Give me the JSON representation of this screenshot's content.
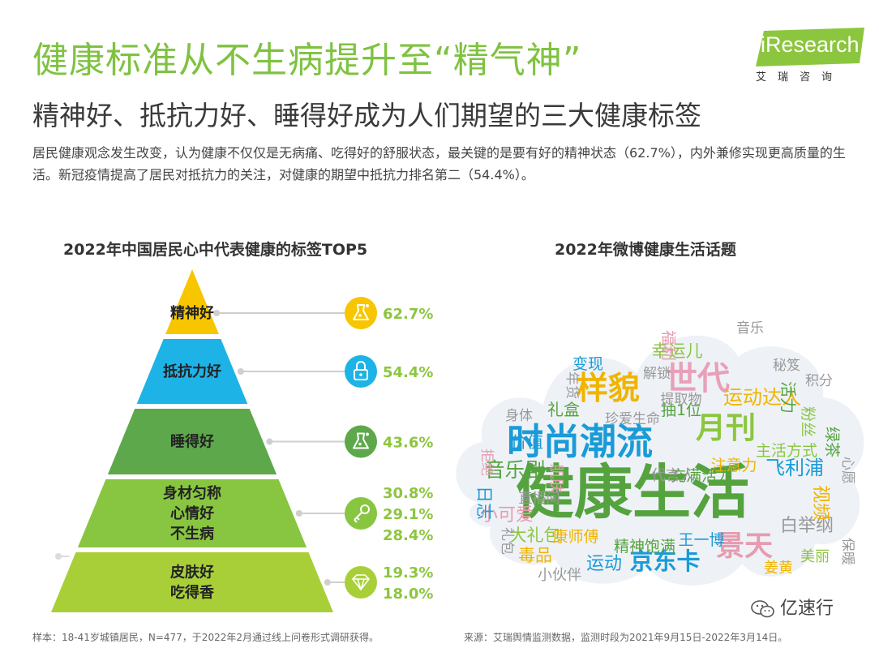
{
  "header": {
    "title": "健康标准从不生病提升至“精气神”",
    "subtitle": "精神好、抵抗力好、睡得好成为人们期望的三大健康标签",
    "description": "居民健康观念发生改变，认为健康不仅仅是无病痛、吃得好的舒服状态，最关键的是要有好的精神状态（62.7%），内外兼修实现更高质量的生活。新冠疫情提高了居民对抵抗力的关注，对健康的期望中抵抗力排名第二（54.4%）。"
  },
  "logo": {
    "text": "iResearch",
    "sub": "艾瑞咨询"
  },
  "chart_data": [
    {
      "type": "pyramid",
      "title": "2022年中国居民心中代表健康的标签TOP5",
      "tiers": [
        {
          "labels": [
            "精神好"
          ],
          "values": [
            "62.7%"
          ],
          "color": "#f7c600",
          "icon": "flask-icon"
        },
        {
          "labels": [
            "抵抗力好"
          ],
          "values": [
            "54.4%"
          ],
          "color": "#1eb3e6",
          "icon": "lock-icon"
        },
        {
          "labels": [
            "睡得好"
          ],
          "values": [
            "43.6%"
          ],
          "color": "#5ca84a",
          "icon": "flask-icon"
        },
        {
          "labels": [
            "身材匀称",
            "心情好",
            "不生病"
          ],
          "values": [
            "30.8%",
            "29.1%",
            "28.4%"
          ],
          "color": "#88c541",
          "icon": "key-icon"
        },
        {
          "labels": [
            "皮肤好",
            "吃得香"
          ],
          "values": [
            "19.3%",
            "18.0%"
          ],
          "color": "#a9cf38",
          "icon": "diamond-icon"
        }
      ],
      "value_color": "#8cc63f"
    },
    {
      "type": "wordcloud",
      "title": "2022年微博健康生活话题",
      "words": [
        {
          "text": "健康生活",
          "weight": 100,
          "color": "#55a33e"
        },
        {
          "text": "时尚潮流",
          "weight": 56,
          "color": "#1a9bd7"
        },
        {
          "text": "世代",
          "weight": 48,
          "color": "#e8a0b8"
        },
        {
          "text": "样貌",
          "weight": 46,
          "color": "#f0b400"
        },
        {
          "text": "月刊",
          "weight": 44,
          "color": "#8cc63f"
        },
        {
          "text": "景天",
          "weight": 40,
          "color": "#e79bb0"
        },
        {
          "text": "京东卡",
          "weight": 30,
          "color": "#1a9bd7"
        },
        {
          "text": "音乐剧",
          "weight": 24,
          "color": "#55a33e"
        },
        {
          "text": "运动达人",
          "weight": 22,
          "color": "#f0b400"
        },
        {
          "text": "飞利浦",
          "weight": 22,
          "color": "#1a9bd7"
        },
        {
          "text": "白举纲",
          "weight": 20,
          "color": "#999999"
        },
        {
          "text": "视频",
          "weight": 20,
          "color": "#f0b400"
        },
        {
          "text": "小可爱",
          "weight": 20,
          "color": "#e79bb0"
        },
        {
          "text": "运动",
          "weight": 20,
          "color": "#1a9bd7"
        },
        {
          "text": "毒品",
          "weight": 18,
          "color": "#f0b400"
        },
        {
          "text": "日志",
          "weight": 18,
          "color": "#1a9bd7"
        },
        {
          "text": "大礼包",
          "weight": 18,
          "color": "#8cc63f"
        },
        {
          "text": "幸运儿",
          "weight": 18,
          "color": "#8cc63f"
        },
        {
          "text": "礼盒",
          "weight": 16,
          "color": "#55a33e"
        },
        {
          "text": "价值",
          "weight": 16,
          "color": "#1a9bd7"
        },
        {
          "text": "活力",
          "weight": 16,
          "color": "#55a33e"
        },
        {
          "text": "主活方式",
          "weight": 15,
          "color": "#8cc63f"
        },
        {
          "text": "福利",
          "weight": 15,
          "color": "#e79bb0"
        },
        {
          "text": "变现",
          "weight": 15,
          "color": "#1a9bd7"
        },
        {
          "text": "抽1位",
          "weight": 14,
          "color": "#55a33e"
        },
        {
          "text": "粉丝",
          "weight": 14,
          "color": "#8cc63f"
        },
        {
          "text": "绿茶",
          "weight": 14,
          "color": "#55a33e"
        },
        {
          "text": "注意力",
          "weight": 14,
          "color": "#f0b400"
        },
        {
          "text": "充满活力",
          "weight": 14,
          "color": "#55a33e"
        },
        {
          "text": "康师傅",
          "weight": 14,
          "color": "#f0b400"
        },
        {
          "text": "精神饱满",
          "weight": 14,
          "color": "#55a33e"
        },
        {
          "text": "王一博",
          "weight": 14,
          "color": "#1a9bd7"
        },
        {
          "text": "代言人",
          "weight": 13,
          "color": "#999999"
        },
        {
          "text": "肌肤",
          "weight": 13,
          "color": "#e79bb0"
        },
        {
          "text": "美丽",
          "weight": 13,
          "color": "#8cc63f"
        },
        {
          "text": "小伙伴",
          "weight": 13,
          "color": "#999999"
        },
        {
          "text": "姜黄",
          "weight": 13,
          "color": "#f0b400"
        },
        {
          "text": "保暖",
          "weight": 12,
          "color": "#999999"
        },
        {
          "text": "拒绝",
          "weight": 12,
          "color": "#e79bb0"
        },
        {
          "text": "积分",
          "weight": 12,
          "color": "#999999"
        },
        {
          "text": "心愿",
          "weight": 12,
          "color": "#999999"
        },
        {
          "text": "年货",
          "weight": 12,
          "color": "#999999"
        },
        {
          "text": "直播间",
          "weight": 12,
          "color": "#999999"
        },
        {
          "text": "解锁",
          "weight": 12,
          "color": "#999999"
        },
        {
          "text": "提取物",
          "weight": 12,
          "color": "#999999"
        },
        {
          "text": "礼包",
          "weight": 12,
          "color": "#999999"
        },
        {
          "text": "身体",
          "weight": 12,
          "color": "#999999"
        },
        {
          "text": "珍爱生命",
          "weight": 12,
          "color": "#999999"
        },
        {
          "text": "音乐",
          "weight": 12,
          "color": "#999999"
        },
        {
          "text": "秘笈",
          "weight": 12,
          "color": "#999999"
        }
      ]
    }
  ],
  "footer": {
    "sample_note": "样本：18-41岁城镇居民，N=477，于2022年2月通过线上问卷形式调研获得。",
    "source_note": "来源：艾瑞舆情监测数据，监测时段为2021年9月15日-2022年3月14日。",
    "watermark": "亿速行"
  }
}
